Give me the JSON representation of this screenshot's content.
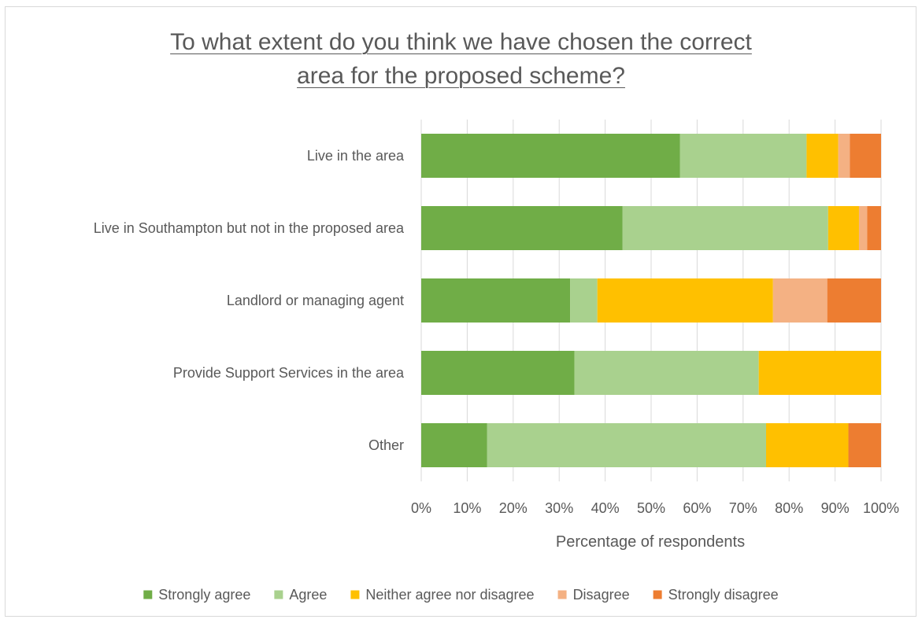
{
  "chart_data": {
    "type": "bar",
    "orientation": "horizontal",
    "stacked": "percent",
    "title_lines": [
      "To what extent do you think we have chosen the correct",
      "area for the proposed scheme?"
    ],
    "xlabel": "Percentage of respondents",
    "ylabel": "",
    "xlim": [
      0,
      100
    ],
    "x_ticks": [
      "0%",
      "10%",
      "20%",
      "30%",
      "40%",
      "50%",
      "60%",
      "70%",
      "80%",
      "90%",
      "100%"
    ],
    "grid": "vertical",
    "legend_position": "bottom",
    "categories": [
      "Live in the area",
      "Live in Southampton but not in the proposed area",
      "Landlord or managing agent",
      "Provide Support Services in the area",
      "Other"
    ],
    "series": [
      {
        "name": "Strongly agree",
        "color": "#70ad47",
        "values": [
          56.3,
          43.8,
          32.4,
          33.3,
          14.3
        ]
      },
      {
        "name": "Agree",
        "color": "#a9d18e",
        "values": [
          27.5,
          44.7,
          5.9,
          40.1,
          60.7
        ]
      },
      {
        "name": "Neither agree nor disagree",
        "color": "#ffc000",
        "values": [
          6.9,
          6.7,
          38.2,
          26.6,
          17.9
        ]
      },
      {
        "name": "Disagree",
        "color": "#f4b183",
        "values": [
          2.5,
          1.8,
          11.8,
          0,
          0
        ]
      },
      {
        "name": "Strongly disagree",
        "color": "#ed7d31",
        "values": [
          6.8,
          3.0,
          11.7,
          0,
          7.1
        ]
      }
    ]
  }
}
